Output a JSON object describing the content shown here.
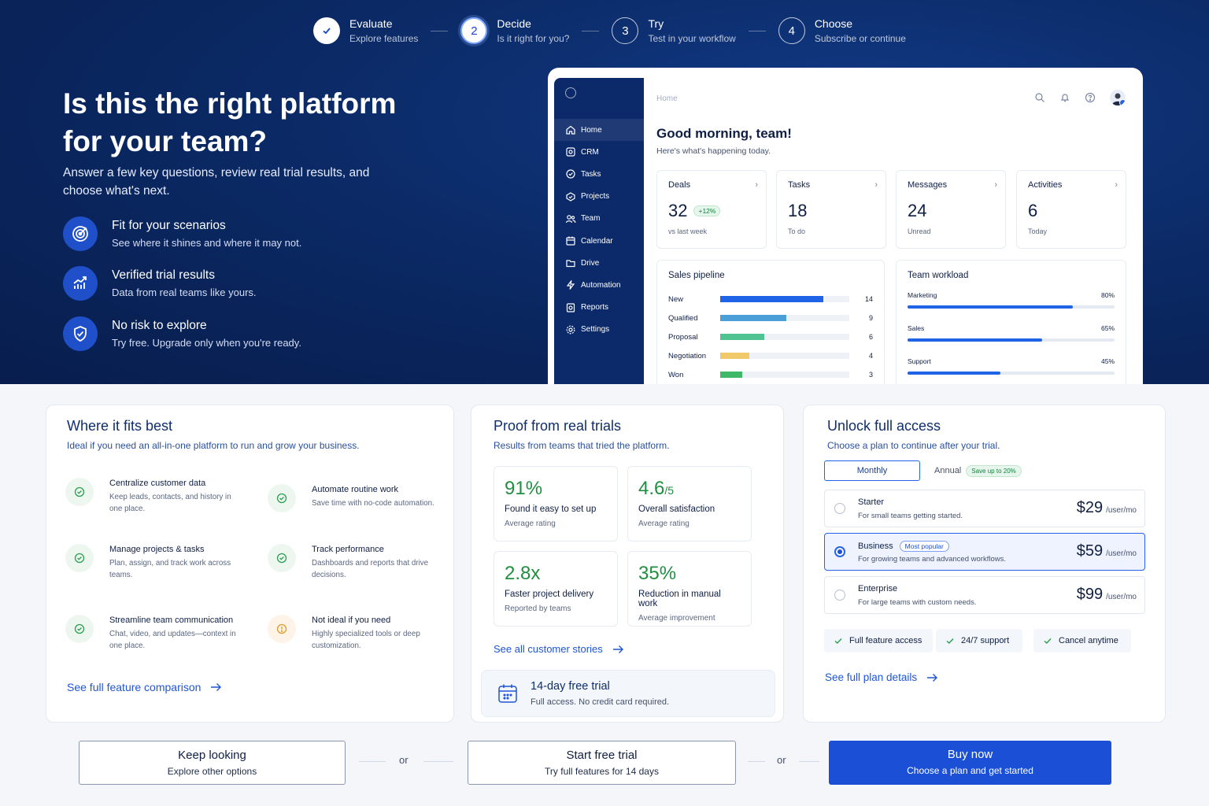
{
  "stepper": [
    {
      "num": "",
      "title": "Evaluate",
      "sub": "Explore features"
    },
    {
      "num": "2",
      "title": "Decide",
      "sub": "Is it right for you?"
    },
    {
      "num": "3",
      "title": "Try",
      "sub": "Test in your workflow"
    },
    {
      "num": "4",
      "title": "Choose",
      "sub": "Subscribe or continue"
    }
  ],
  "hero": {
    "title": "Is this the right platform for your team?",
    "subtitle": "Answer a few key questions, review real trial results, and choose what's next.",
    "features": [
      {
        "title": "Fit for your scenarios",
        "sub": "See where it shines and where it may not.",
        "icon": "target-icon"
      },
      {
        "title": "Verified trial results",
        "sub": "Data from real teams like yours.",
        "icon": "chart-up-icon"
      },
      {
        "title": "No risk to explore",
        "sub": "Try free. Upgrade only when you're ready.",
        "icon": "shield-check-icon"
      }
    ]
  },
  "app": {
    "nav": [
      "Home",
      "CRM",
      "Tasks",
      "Projects",
      "Team",
      "Calendar",
      "Drive",
      "Automation",
      "Reports",
      "Settings"
    ],
    "breadcrumb": "Home",
    "greeting": "Good morning, team!",
    "greeting_sub": "Here's what's happening today.",
    "stats": [
      {
        "label": "Deals",
        "value": "32",
        "badge": "+12%",
        "sub": "vs last week"
      },
      {
        "label": "Tasks",
        "value": "18",
        "badge": "",
        "sub": "To do"
      },
      {
        "label": "Messages",
        "value": "24",
        "badge": "",
        "sub": "Unread"
      },
      {
        "label": "Activities",
        "value": "6",
        "badge": "",
        "sub": "Today"
      }
    ],
    "pipeline": {
      "title": "Sales pipeline",
      "max": 17.5,
      "rows": [
        {
          "label": "New",
          "value": 14,
          "color": "#1f63e6"
        },
        {
          "label": "Qualified",
          "value": 9,
          "color": "#4a9fd8"
        },
        {
          "label": "Proposal",
          "value": 6,
          "color": "#4fc391"
        },
        {
          "label": "Negotiation",
          "value": 4,
          "color": "#f0c96a"
        },
        {
          "label": "Won",
          "value": 3,
          "color": "#3fb868"
        }
      ]
    },
    "workload": {
      "title": "Team workload",
      "rows": [
        {
          "label": "Marketing",
          "pct_label": "80%",
          "pct": 80
        },
        {
          "label": "Sales",
          "pct_label": "65%",
          "pct": 65
        },
        {
          "label": "Support",
          "pct_label": "45%",
          "pct": 45
        }
      ]
    }
  },
  "fit": {
    "title": "Where it fits best",
    "subtitle": "Ideal if you need an all-in-one platform to run and grow your business.",
    "items": [
      {
        "title": "Centralize customer data",
        "sub": "Keep leads, contacts, and history in one place."
      },
      {
        "title": "Automate routine work",
        "sub": "Save time with no-code automation."
      },
      {
        "title": "Manage projects & tasks",
        "sub": "Plan, assign, and track work across teams."
      },
      {
        "title": "Track performance",
        "sub": "Dashboards and reports that drive decisions."
      },
      {
        "title": "Streamline team communication",
        "sub": "Chat, video, and updates—context in one place."
      },
      {
        "title": "Not ideal if you need",
        "sub": "Highly specialized tools or deep customization."
      }
    ],
    "link": "See full feature comparison"
  },
  "proof": {
    "title": "Proof from real trials",
    "subtitle": "Results from teams that tried the platform.",
    "stats": [
      {
        "value": "91%",
        "suffix": "",
        "label": "Found it easy to set up",
        "sub": "Average rating"
      },
      {
        "value": "4.6",
        "suffix": "/5",
        "label": "Overall satisfaction",
        "sub": "Average rating"
      },
      {
        "value": "2.8x",
        "suffix": "",
        "label": "Faster project delivery",
        "sub": "Reported by teams"
      },
      {
        "value": "35%",
        "suffix": "",
        "label": "Reduction in manual work",
        "sub": "Average improvement"
      }
    ],
    "link": "See all customer stories",
    "trial_title": "14-day free trial",
    "trial_sub": "Full access. No credit card required."
  },
  "pricing": {
    "title": "Unlock full access",
    "subtitle": "Choose a plan to continue after your trial.",
    "monthly": "Monthly",
    "annual": "Annual",
    "save_badge": "Save up to 20%",
    "plans": [
      {
        "name": "Starter",
        "badge": "",
        "desc": "For small teams getting started.",
        "price": "$29",
        "unit": "/user/mo"
      },
      {
        "name": "Business",
        "badge": "Most popular",
        "desc": "For growing teams and advanced workflows.",
        "price": "$59",
        "unit": "/user/mo"
      },
      {
        "name": "Enterprise",
        "badge": "",
        "desc": "For large teams with custom needs.",
        "price": "$99",
        "unit": "/user/mo"
      }
    ],
    "perks": [
      "Full feature access",
      "24/7 support",
      "Cancel anytime"
    ],
    "link": "See full plan details"
  },
  "actions": {
    "keep_title": "Keep looking",
    "keep_sub": "Explore other options",
    "or": "or",
    "trial_title": "Start free trial",
    "trial_sub": "Try full features for 14 days",
    "buy_title": "Buy now",
    "buy_sub": "Choose a plan and get started"
  }
}
